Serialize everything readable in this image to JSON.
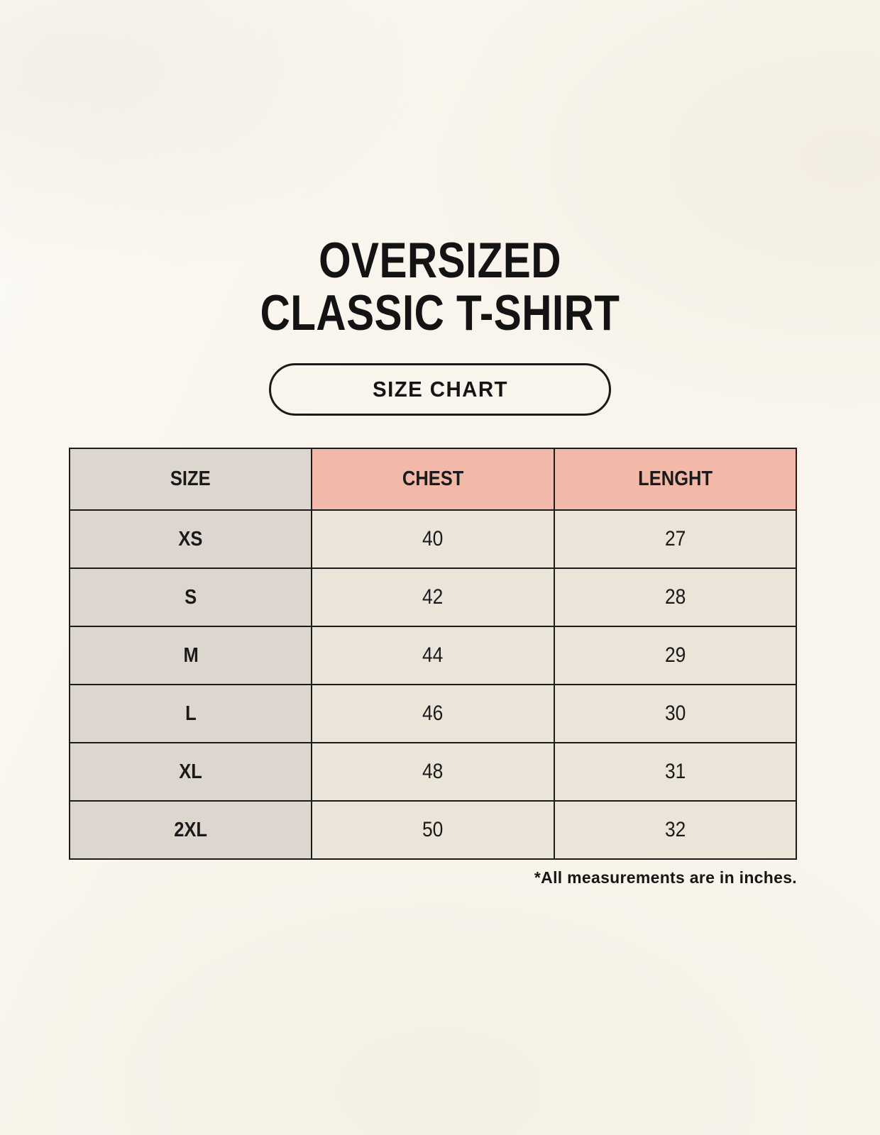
{
  "header": {
    "title_lines": [
      "OVERSIZED",
      "CLASSIC T-SHIRT"
    ],
    "size_chart_button": "SIZE CHART"
  },
  "footnote": "*All measurements are in inches.",
  "colors": {
    "page_background": "#f9f5ec",
    "header_accent": "#f2b9a8",
    "size_column": "#ddd6cf",
    "data_cell": "#ebe4d9",
    "border": "#1c1c1c",
    "text": "#1a1a1a"
  },
  "chart_data": {
    "type": "table",
    "title": "OVERSIZED CLASSIC T-SHIRT",
    "columns": [
      "SIZE",
      "CHEST",
      "LENGHT"
    ],
    "rows": [
      {
        "size": "XS",
        "chest": 40,
        "length": 27
      },
      {
        "size": "S",
        "chest": 42,
        "length": 28
      },
      {
        "size": "M",
        "chest": 44,
        "length": 29
      },
      {
        "size": "L",
        "chest": 46,
        "length": 30
      },
      {
        "size": "XL",
        "chest": 48,
        "length": 31
      },
      {
        "size": "2XL",
        "chest": 50,
        "length": 32
      }
    ],
    "units_note": "*All measurements are in inches."
  }
}
